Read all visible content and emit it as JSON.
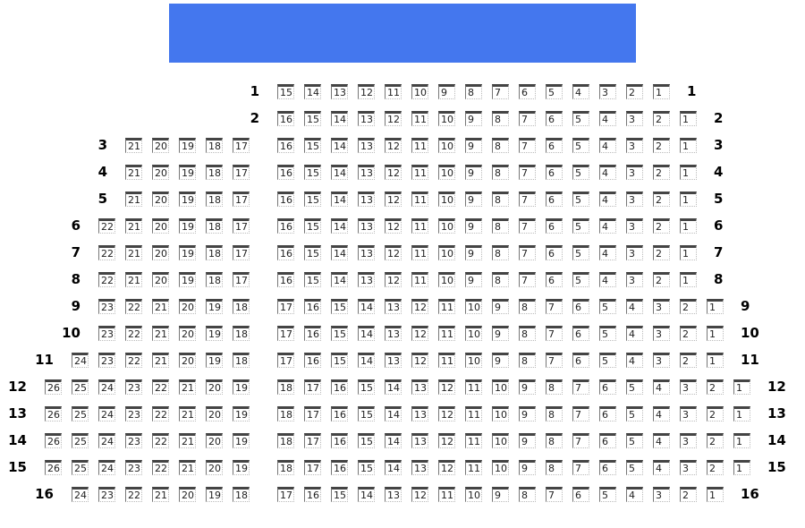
{
  "screen": {
    "label": "",
    "color": "#4477ee"
  },
  "seat_colors": {
    "top_bar": "#444444",
    "text": "#222222"
  },
  "rows": [
    {
      "label": "1",
      "left": null,
      "right": [
        15,
        1
      ]
    },
    {
      "label": "2",
      "left": null,
      "right": [
        16,
        1
      ]
    },
    {
      "label": "3",
      "left": [
        21,
        17
      ],
      "right": [
        16,
        1
      ]
    },
    {
      "label": "4",
      "left": [
        21,
        17
      ],
      "right": [
        16,
        1
      ]
    },
    {
      "label": "5",
      "left": [
        21,
        17
      ],
      "right": [
        16,
        1
      ]
    },
    {
      "label": "6",
      "left": [
        22,
        17
      ],
      "right": [
        16,
        1
      ]
    },
    {
      "label": "7",
      "left": [
        22,
        17
      ],
      "right": [
        16,
        1
      ]
    },
    {
      "label": "8",
      "left": [
        22,
        17
      ],
      "right": [
        16,
        1
      ]
    },
    {
      "label": "9",
      "left": [
        23,
        18
      ],
      "right": [
        17,
        1
      ]
    },
    {
      "label": "10",
      "left": [
        23,
        18
      ],
      "right": [
        17,
        1
      ]
    },
    {
      "label": "11",
      "left": [
        24,
        18
      ],
      "right": [
        17,
        1
      ]
    },
    {
      "label": "12",
      "left": [
        26,
        19
      ],
      "right": [
        18,
        1
      ]
    },
    {
      "label": "13",
      "left": [
        26,
        19
      ],
      "right": [
        18,
        1
      ]
    },
    {
      "label": "14",
      "left": [
        26,
        19
      ],
      "right": [
        18,
        1
      ]
    },
    {
      "label": "15",
      "left": [
        26,
        19
      ],
      "right": [
        18,
        1
      ]
    },
    {
      "label": "16",
      "left": [
        24,
        18
      ],
      "right": [
        17,
        1
      ]
    }
  ]
}
